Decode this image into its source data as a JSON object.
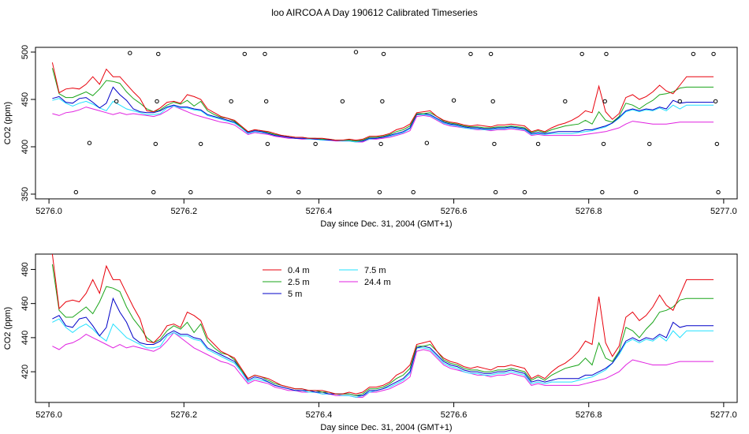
{
  "figure_title": "loo AIRCOA A  Day 190612  Calibrated Timeseries",
  "colors": {
    "0.4 m": "#e8000b",
    "2.5 m": "#1aa51a",
    "5 m": "#0000c8",
    "7.5 m": "#20e0ff",
    "24.4 m": "#e020e0"
  },
  "chart_data": [
    {
      "type": "line",
      "title": "",
      "xlabel": "Day since Dec. 31, 2004 (GMT+1)",
      "ylabel": "CO2 (ppm)",
      "xlim": [
        5275.98,
        5277.02
      ],
      "ylim": [
        345,
        505
      ],
      "x_ticks": [
        "5276.0",
        "5276.2",
        "5276.4",
        "5276.6",
        "5276.8",
        "5277.0"
      ],
      "y_ticks": [
        "350",
        "400",
        "450",
        "500"
      ],
      "legend": "none",
      "grid": false,
      "markers_note": "open circles (calibration points)",
      "markers": [
        {
          "x": 5276.04,
          "y": 352
        },
        {
          "x": 5276.06,
          "y": 404
        },
        {
          "x": 5276.1,
          "y": 448
        },
        {
          "x": 5276.12,
          "y": 499
        },
        {
          "x": 5276.155,
          "y": 352
        },
        {
          "x": 5276.158,
          "y": 403
        },
        {
          "x": 5276.16,
          "y": 448
        },
        {
          "x": 5276.162,
          "y": 498
        },
        {
          "x": 5276.21,
          "y": 352
        },
        {
          "x": 5276.225,
          "y": 403
        },
        {
          "x": 5276.27,
          "y": 448
        },
        {
          "x": 5276.29,
          "y": 498
        },
        {
          "x": 5276.32,
          "y": 498
        },
        {
          "x": 5276.322,
          "y": 448
        },
        {
          "x": 5276.324,
          "y": 403
        },
        {
          "x": 5276.326,
          "y": 352
        },
        {
          "x": 5276.37,
          "y": 352
        },
        {
          "x": 5276.395,
          "y": 403
        },
        {
          "x": 5276.435,
          "y": 448
        },
        {
          "x": 5276.455,
          "y": 500
        },
        {
          "x": 5276.49,
          "y": 352
        },
        {
          "x": 5276.492,
          "y": 403
        },
        {
          "x": 5276.494,
          "y": 448
        },
        {
          "x": 5276.496,
          "y": 498
        },
        {
          "x": 5276.54,
          "y": 352
        },
        {
          "x": 5276.56,
          "y": 404
        },
        {
          "x": 5276.6,
          "y": 449
        },
        {
          "x": 5276.625,
          "y": 498
        },
        {
          "x": 5276.655,
          "y": 498
        },
        {
          "x": 5276.658,
          "y": 448
        },
        {
          "x": 5276.66,
          "y": 403
        },
        {
          "x": 5276.662,
          "y": 352
        },
        {
          "x": 5276.705,
          "y": 352
        },
        {
          "x": 5276.725,
          "y": 403
        },
        {
          "x": 5276.765,
          "y": 448
        },
        {
          "x": 5276.79,
          "y": 498
        },
        {
          "x": 5276.82,
          "y": 352
        },
        {
          "x": 5276.822,
          "y": 403
        },
        {
          "x": 5276.824,
          "y": 448
        },
        {
          "x": 5276.826,
          "y": 498
        },
        {
          "x": 5276.87,
          "y": 352
        },
        {
          "x": 5276.89,
          "y": 403
        },
        {
          "x": 5276.935,
          "y": 448
        },
        {
          "x": 5276.955,
          "y": 498
        },
        {
          "x": 5276.985,
          "y": 498
        },
        {
          "x": 5276.988,
          "y": 448
        },
        {
          "x": 5276.99,
          "y": 403
        },
        {
          "x": 5276.992,
          "y": 352
        }
      ],
      "x": [
        5276.005,
        5276.015,
        5276.025,
        5276.035,
        5276.045,
        5276.055,
        5276.065,
        5276.075,
        5276.085,
        5276.095,
        5276.105,
        5276.115,
        5276.125,
        5276.135,
        5276.145,
        5276.155,
        5276.165,
        5276.175,
        5276.185,
        5276.195,
        5276.205,
        5276.215,
        5276.225,
        5276.235,
        5276.245,
        5276.255,
        5276.265,
        5276.275,
        5276.285,
        5276.295,
        5276.305,
        5276.315,
        5276.325,
        5276.335,
        5276.345,
        5276.355,
        5276.365,
        5276.375,
        5276.385,
        5276.395,
        5276.405,
        5276.415,
        5276.425,
        5276.435,
        5276.445,
        5276.455,
        5276.465,
        5276.475,
        5276.485,
        5276.495,
        5276.505,
        5276.515,
        5276.525,
        5276.535,
        5276.545,
        5276.555,
        5276.565,
        5276.575,
        5276.585,
        5276.595,
        5276.605,
        5276.615,
        5276.625,
        5276.635,
        5276.645,
        5276.655,
        5276.665,
        5276.675,
        5276.685,
        5276.695,
        5276.705,
        5276.715,
        5276.725,
        5276.735,
        5276.745,
        5276.755,
        5276.765,
        5276.775,
        5276.785,
        5276.795,
        5276.805,
        5276.815,
        5276.825,
        5276.835,
        5276.845,
        5276.855,
        5276.865,
        5276.875,
        5276.885,
        5276.895,
        5276.905,
        5276.915,
        5276.925,
        5276.935,
        5276.945,
        5276.955,
        5276.965,
        5276.975,
        5276.985
      ],
      "series": [
        {
          "name": "0.4 m",
          "values": [
            489,
            457,
            461,
            462,
            461,
            466,
            474,
            466,
            482,
            474,
            474,
            466,
            458,
            451,
            438,
            437,
            441,
            447,
            448,
            446,
            455,
            453,
            450,
            440,
            436,
            432,
            430,
            428,
            422,
            416,
            418,
            417,
            416,
            414,
            412,
            411,
            410,
            410,
            409,
            409,
            409,
            408,
            407,
            407,
            408,
            407,
            408,
            411,
            411,
            412,
            414,
            418,
            420,
            424,
            436,
            437,
            438,
            432,
            428,
            426,
            425,
            423,
            422,
            423,
            422,
            421,
            423,
            423,
            424,
            423,
            422,
            416,
            418,
            416,
            420,
            423,
            425,
            428,
            432,
            438,
            436,
            464,
            437,
            429,
            435,
            452,
            455,
            450,
            453,
            458,
            465,
            459,
            456,
            465,
            474,
            474,
            474,
            474,
            474
          ]
        },
        {
          "name": "2.5 m",
          "values": [
            483,
            456,
            452,
            452,
            455,
            458,
            454,
            461,
            470,
            469,
            467,
            458,
            451,
            446,
            440,
            437,
            439,
            444,
            447,
            445,
            449,
            443,
            448,
            438,
            434,
            431,
            430,
            427,
            421,
            416,
            418,
            417,
            415,
            413,
            412,
            411,
            410,
            410,
            409,
            409,
            408,
            408,
            407,
            407,
            407,
            406,
            407,
            410,
            410,
            411,
            413,
            416,
            418,
            422,
            435,
            435,
            436,
            432,
            427,
            425,
            424,
            422,
            421,
            421,
            420,
            420,
            421,
            421,
            422,
            421,
            420,
            415,
            417,
            415,
            418,
            420,
            422,
            423,
            424,
            428,
            424,
            437,
            428,
            426,
            432,
            446,
            444,
            440,
            445,
            449,
            455,
            456,
            458,
            462,
            463,
            463,
            463,
            463,
            463
          ]
        },
        {
          "name": "5 m",
          "values": [
            451,
            453,
            447,
            446,
            451,
            452,
            447,
            441,
            446,
            463,
            455,
            449,
            440,
            437,
            436,
            436,
            438,
            442,
            444,
            442,
            442,
            440,
            439,
            434,
            432,
            430,
            428,
            426,
            421,
            415,
            417,
            416,
            414,
            412,
            411,
            410,
            409,
            409,
            409,
            408,
            408,
            407,
            407,
            407,
            407,
            406,
            406,
            409,
            409,
            410,
            412,
            414,
            416,
            420,
            434,
            435,
            434,
            430,
            426,
            424,
            423,
            421,
            420,
            420,
            419,
            419,
            420,
            420,
            421,
            420,
            419,
            414,
            415,
            414,
            415,
            416,
            416,
            416,
            416,
            418,
            418,
            420,
            422,
            425,
            431,
            438,
            440,
            438,
            440,
            439,
            442,
            440,
            449,
            446,
            447,
            447,
            447,
            447,
            447
          ]
        },
        {
          "name": "7.5 m",
          "values": [
            449,
            451,
            446,
            443,
            446,
            448,
            445,
            441,
            438,
            448,
            444,
            440,
            438,
            436,
            434,
            434,
            435,
            441,
            443,
            441,
            441,
            439,
            438,
            433,
            431,
            429,
            427,
            425,
            420,
            414,
            416,
            415,
            414,
            412,
            411,
            410,
            409,
            409,
            408,
            408,
            407,
            407,
            407,
            406,
            406,
            405,
            406,
            408,
            409,
            410,
            411,
            413,
            415,
            419,
            434,
            434,
            433,
            429,
            425,
            423,
            422,
            420,
            419,
            419,
            418,
            418,
            419,
            419,
            420,
            419,
            418,
            413,
            414,
            413,
            414,
            414,
            414,
            414,
            415,
            416,
            417,
            419,
            421,
            425,
            430,
            437,
            439,
            437,
            439,
            438,
            441,
            438,
            444,
            440,
            444,
            444,
            444,
            444,
            444
          ]
        },
        {
          "name": "24.4 m",
          "values": [
            435,
            433,
            436,
            437,
            439,
            442,
            440,
            438,
            436,
            434,
            436,
            434,
            435,
            434,
            433,
            432,
            434,
            438,
            443,
            440,
            437,
            434,
            432,
            430,
            428,
            426,
            425,
            423,
            418,
            413,
            415,
            414,
            413,
            411,
            410,
            409,
            409,
            408,
            408,
            408,
            407,
            407,
            406,
            406,
            406,
            405,
            405,
            408,
            408,
            409,
            410,
            412,
            414,
            417,
            432,
            433,
            432,
            428,
            424,
            422,
            421,
            420,
            419,
            418,
            418,
            417,
            418,
            418,
            419,
            418,
            417,
            412,
            413,
            412,
            412,
            412,
            412,
            412,
            412,
            413,
            414,
            415,
            416,
            418,
            420,
            424,
            427,
            426,
            425,
            424,
            424,
            424,
            425,
            426,
            426,
            426,
            426,
            426,
            426
          ]
        }
      ]
    },
    {
      "type": "line",
      "title": "",
      "xlabel": "Day since Dec. 31, 2004 (GMT+1)",
      "ylabel": "CO2 (ppm)",
      "xlim": [
        5275.98,
        5277.02
      ],
      "ylim": [
        402,
        489
      ],
      "x_ticks": [
        "5276.0",
        "5276.2",
        "5276.4",
        "5276.6",
        "5276.8",
        "5277.0"
      ],
      "y_ticks": [
        "420",
        "440",
        "460",
        "480"
      ],
      "legend": "top-left",
      "grid": false,
      "legend_entries": [
        "0.4 m",
        "2.5 m",
        "5 m",
        "7.5 m",
        "24.4 m"
      ],
      "series_ref": "same series as chart 1"
    }
  ]
}
